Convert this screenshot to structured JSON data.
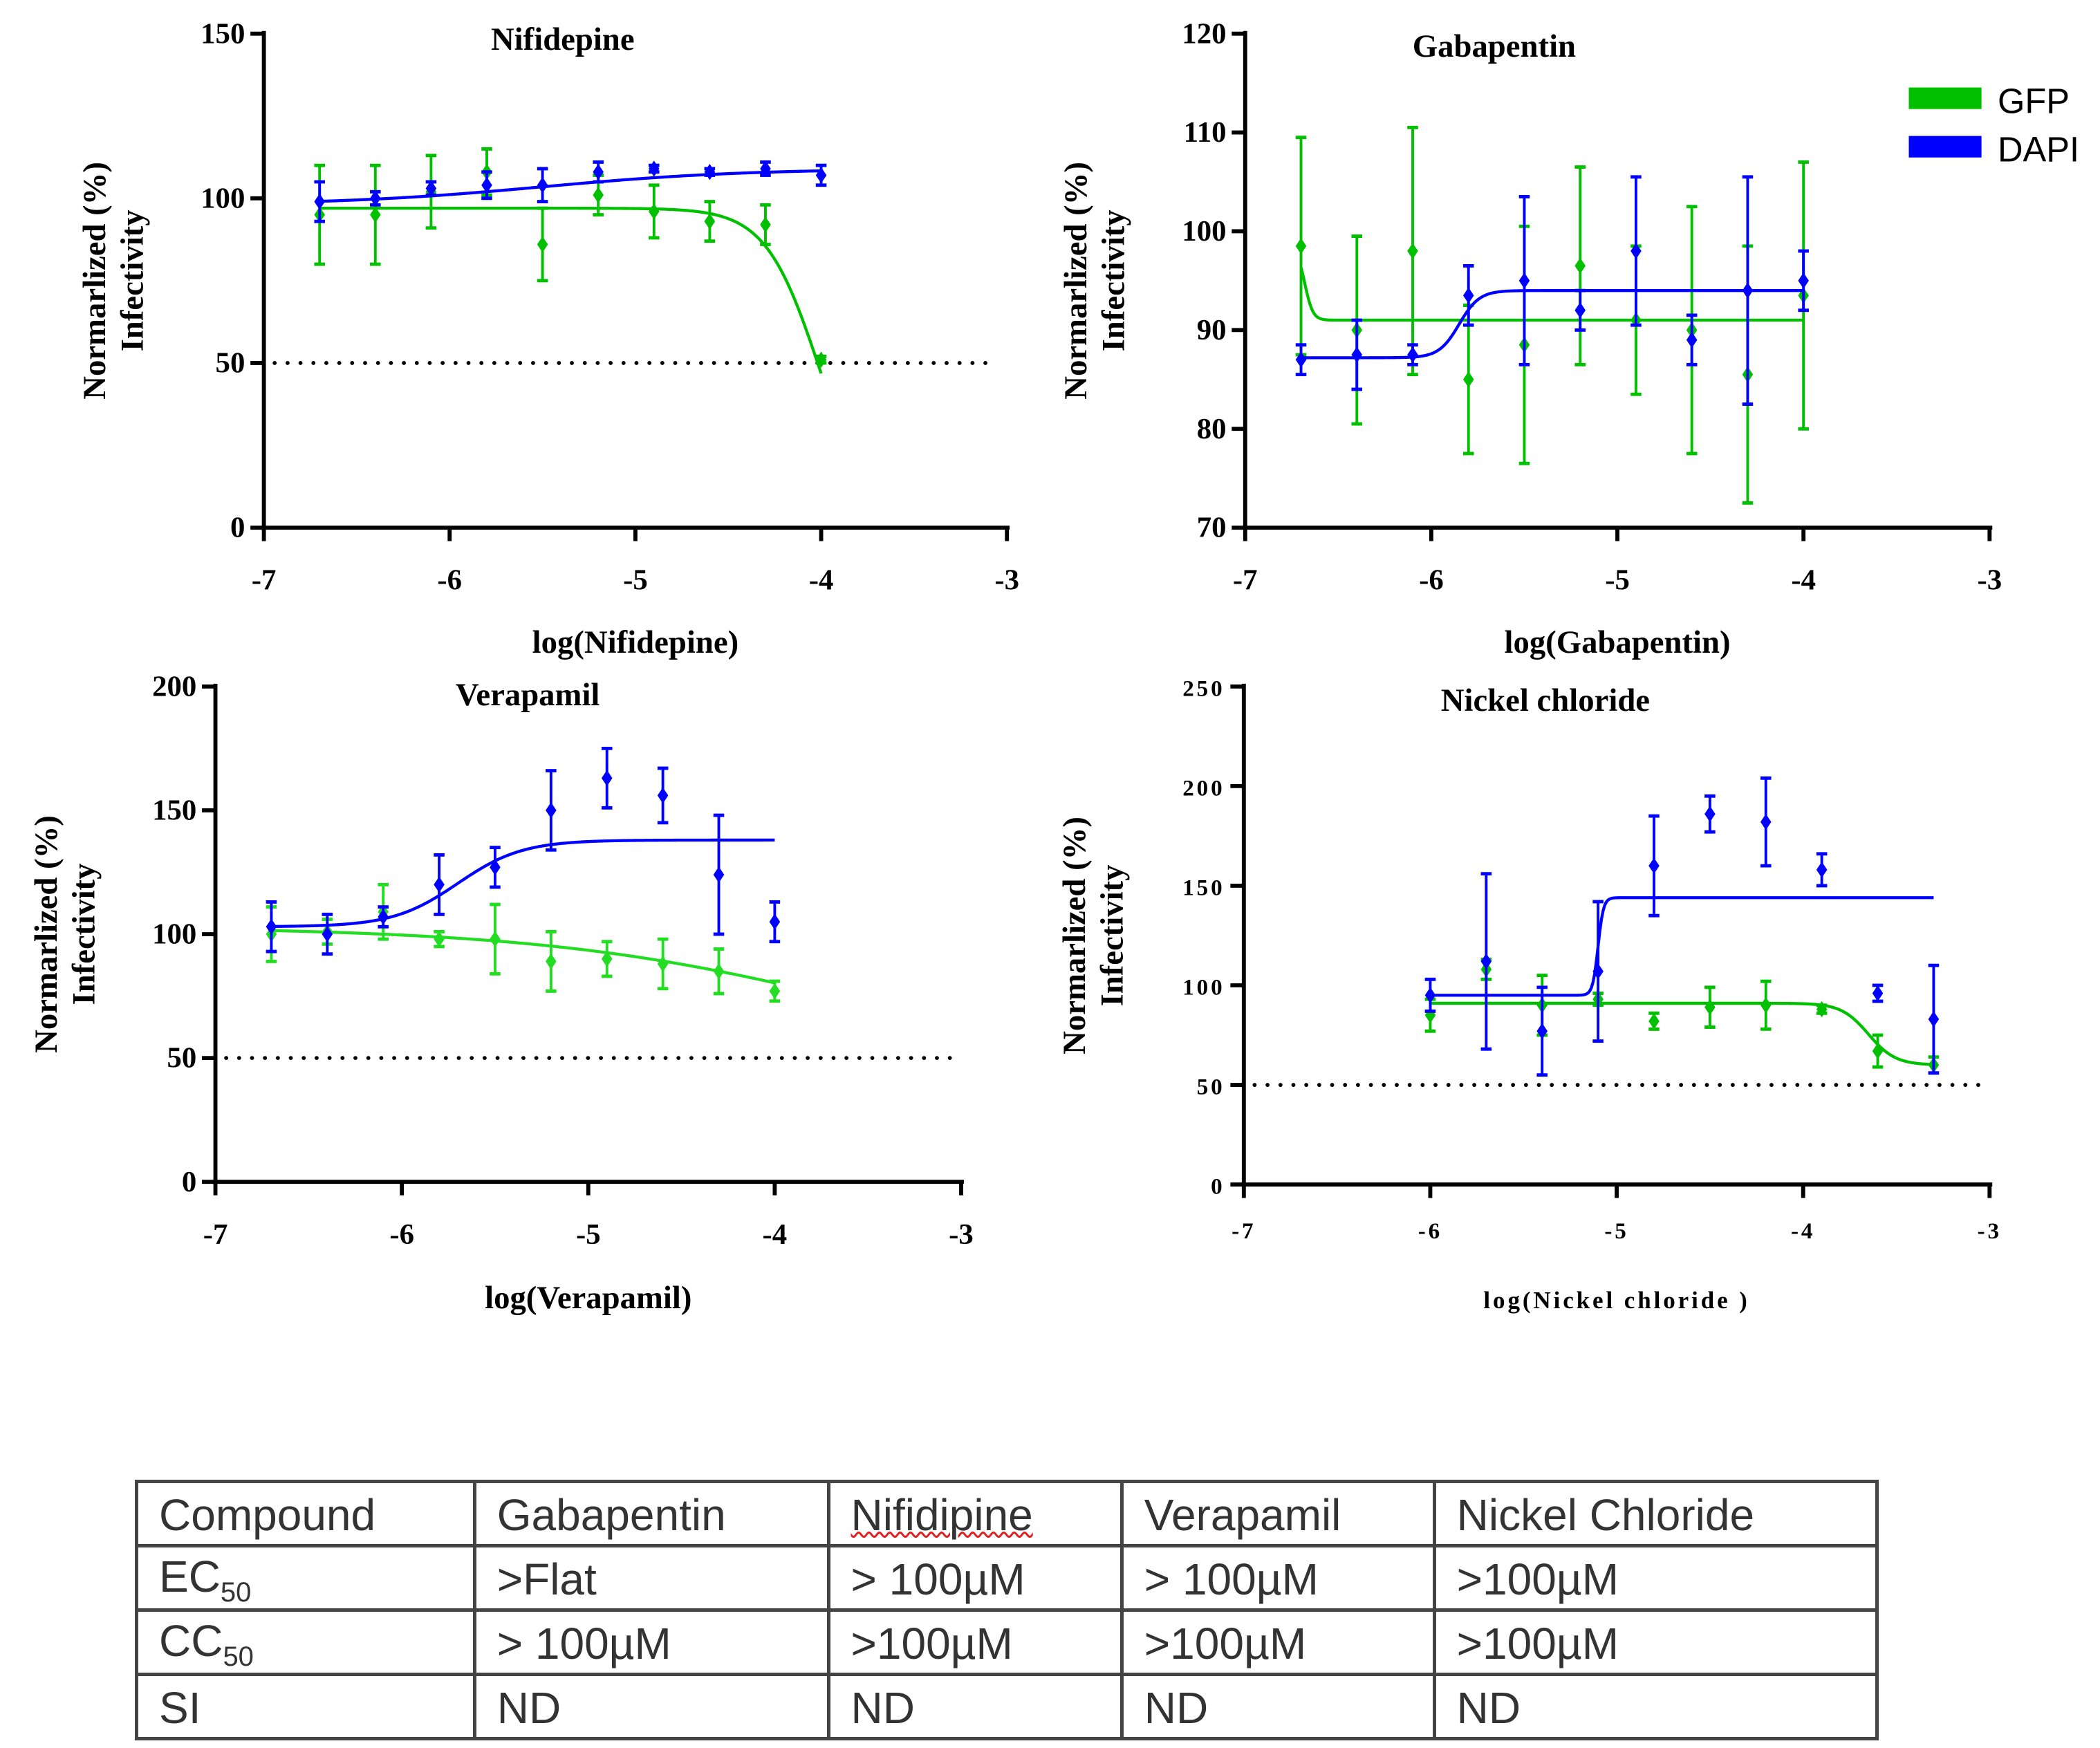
{
  "legend": {
    "items": [
      {
        "label": "GFP",
        "color": "#00c000"
      },
      {
        "label": "DAPI",
        "color": "#0000ff"
      }
    ]
  },
  "y_label_line1": "Normarlized (%)",
  "y_label_line2": "Infectivity",
  "chart_data": [
    {
      "type": "scatter",
      "title": "Nifidepine",
      "xlabel": "log(Nifidepine)",
      "ylabel": "Normarlized (%) Infectivity",
      "xlim": [
        -7,
        -3
      ],
      "ylim": [
        0,
        150
      ],
      "xticks": [
        "-7",
        "-6",
        "-5",
        "-4",
        "-3"
      ],
      "yticks": [
        "0",
        "50",
        "100",
        "150"
      ],
      "reference_line": 50,
      "x": [
        -6.7,
        -6.4,
        -6.1,
        -5.8,
        -5.5,
        -5.2,
        -4.9,
        -4.6,
        -4.3,
        -4.0
      ],
      "series": [
        {
          "name": "GFP",
          "color": "#00c000",
          "values": [
            95,
            95,
            102,
            108,
            86,
            101,
            96,
            93,
            92,
            51
          ],
          "errors": [
            15,
            15,
            11,
            7,
            11,
            6,
            8,
            6,
            6,
            1
          ]
        },
        {
          "name": "DAPI",
          "color": "#0000ff",
          "values": [
            99,
            100,
            103,
            104,
            104,
            108,
            109,
            108,
            109,
            107
          ],
          "errors": [
            6,
            2,
            2,
            4,
            5,
            3,
            1,
            1,
            2,
            3
          ]
        }
      ]
    },
    {
      "type": "scatter",
      "title": "Gabapentin",
      "xlabel": "log(Gabapentin)",
      "ylabel": "Normarlized (%) Infectivity",
      "xlim": [
        -7,
        -3
      ],
      "ylim": [
        70,
        120
      ],
      "xticks": [
        "-7",
        "-6",
        "-5",
        "-4",
        "-3"
      ],
      "yticks": [
        "70",
        "80",
        "90",
        "100",
        "110",
        "120"
      ],
      "x": [
        -6.7,
        -6.4,
        -6.1,
        -5.8,
        -5.5,
        -5.2,
        -4.9,
        -4.6,
        -4.3,
        -4.0
      ],
      "series": [
        {
          "name": "GFP",
          "color": "#00c000",
          "values": [
            98.5,
            90,
            98,
            85,
            88.5,
            96.5,
            91,
            90,
            85.5,
            93.5
          ],
          "errors": [
            11,
            9.5,
            12.5,
            7.5,
            12,
            10,
            7.5,
            12.5,
            13,
            13.5
          ]
        },
        {
          "name": "DAPI",
          "color": "#0000ff",
          "values": [
            87,
            87.5,
            87.5,
            93.5,
            95,
            92,
            98,
            89,
            94,
            95
          ],
          "errors": [
            1.5,
            3.5,
            1,
            3,
            8.5,
            2,
            7.5,
            2.5,
            11.5,
            3
          ]
        }
      ]
    },
    {
      "type": "scatter",
      "title": "Verapamil",
      "xlabel": "log(Verapamil)",
      "ylabel": "Normarlized (%) Infectivity",
      "xlim": [
        -7,
        -3
      ],
      "ylim": [
        0,
        200
      ],
      "xticks": [
        "-7",
        "-6",
        "-5",
        "-4",
        "-3"
      ],
      "yticks": [
        "0",
        "50",
        "100",
        "150",
        "200"
      ],
      "reference_line": 50,
      "x": [
        -6.7,
        -6.4,
        -6.1,
        -5.8,
        -5.5,
        -5.2,
        -4.9,
        -4.6,
        -4.3,
        -4.0
      ],
      "series": [
        {
          "name": "GFP",
          "color": "#22dd22",
          "values": [
            100,
            101,
            109,
            98,
            98,
            89,
            90,
            88,
            85,
            77
          ],
          "errors": [
            11,
            5,
            11,
            3,
            14,
            12,
            7,
            10,
            9,
            4
          ]
        },
        {
          "name": "DAPI",
          "color": "#0000ff",
          "values": [
            103,
            100,
            107,
            120,
            127,
            150,
            163,
            156,
            124,
            105
          ],
          "errors": [
            10,
            8,
            4,
            12,
            8,
            16,
            12,
            11,
            24,
            8
          ]
        }
      ]
    },
    {
      "type": "scatter",
      "title": "Nickel chloride",
      "xlabel": "log(Nickel chloride )",
      "ylabel": "Normarlized (%) Infectivity",
      "xlim": [
        -7,
        -3
      ],
      "ylim": [
        0,
        250
      ],
      "xticks": [
        "-7",
        "-6",
        "-5",
        "-4",
        "-3"
      ],
      "yticks": [
        "0",
        "50",
        "100",
        "150",
        "200",
        "250"
      ],
      "reference_line": 50,
      "x": [
        -6.0,
        -5.7,
        -5.4,
        -5.1,
        -4.8,
        -4.5,
        -4.2,
        -3.9,
        -3.6,
        -3.3
      ],
      "series": [
        {
          "name": "GFP",
          "color": "#00c000",
          "values": [
            85,
            108,
            90,
            93,
            82,
            89,
            90,
            88,
            67,
            60
          ],
          "errors": [
            8,
            5,
            15,
            3,
            4,
            10,
            12,
            2,
            8,
            4
          ]
        },
        {
          "name": "DAPI",
          "color": "#0000ff",
          "values": [
            95,
            112,
            77,
            107,
            160,
            186,
            182,
            158,
            96,
            83
          ],
          "errors": [
            8,
            44,
            22,
            35,
            25,
            9,
            22,
            8,
            4,
            27
          ]
        }
      ]
    }
  ],
  "table": {
    "header": [
      "Compound",
      "Gabapentin",
      "Nifidipine",
      "Verapamil",
      "Nickel Chloride"
    ],
    "rows": [
      {
        "label": "EC",
        "sub": "50",
        "cells": [
          ">Flat",
          "> 100µM",
          "> 100µM",
          ">100µM"
        ]
      },
      {
        "label": "CC",
        "sub": "50",
        "cells": [
          "> 100µM",
          ">100µM",
          ">100µM",
          ">100µM"
        ]
      },
      {
        "label": "SI",
        "sub": "",
        "cells": [
          "ND",
          "ND",
          "ND",
          "ND"
        ]
      }
    ]
  }
}
